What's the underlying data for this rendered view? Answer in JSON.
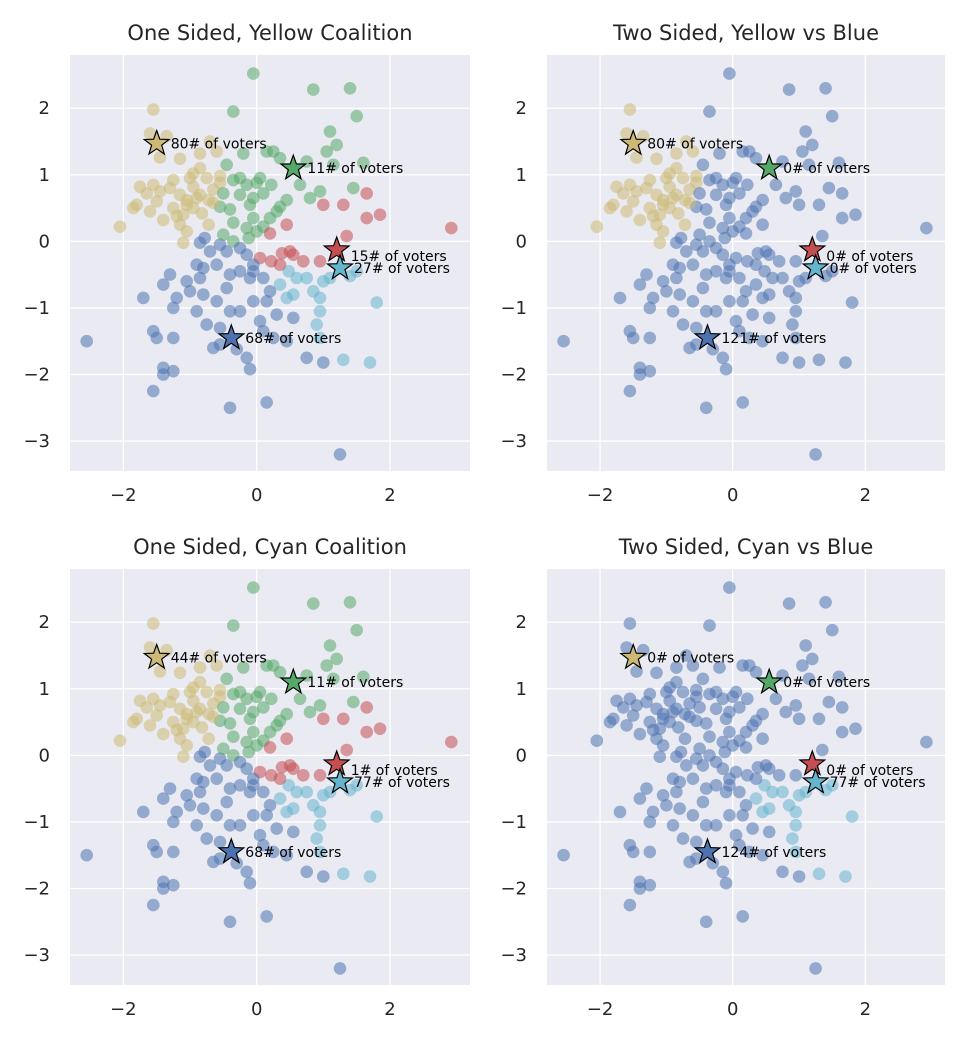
{
  "colors": {
    "background": "#eaeaf2",
    "grid": "#ffffff",
    "yellow": "#ccb974",
    "blue": "#4c72b0",
    "cyan": "#64b5cd",
    "green": "#55a868",
    "red": "#c44e52"
  },
  "chart_data": [
    {
      "type": "scatter",
      "title": "One Sided, Yellow Coalition",
      "xlabel": "",
      "ylabel": "",
      "xlim": [
        -2.8,
        3.2
      ],
      "ylim": [
        -3.45,
        2.8
      ],
      "xticks": [
        "−2",
        "0",
        "2"
      ],
      "yticks": [
        "−3",
        "−2",
        "−1",
        "0",
        "1",
        "2"
      ],
      "grid": true,
      "markers": [
        "yellow",
        "green",
        "red",
        "cyan",
        "blue"
      ],
      "labels": [
        "80# of voters",
        "11# of voters",
        "15# of voters",
        "27# of voters",
        "68# of voters"
      ]
    },
    {
      "type": "scatter",
      "title": "Two Sided, Yellow vs Blue",
      "xlabel": "",
      "ylabel": "",
      "xlim": [
        -2.8,
        3.2
      ],
      "ylim": [
        -3.45,
        2.8
      ],
      "xticks": [
        "−2",
        "0",
        "2"
      ],
      "yticks": [
        "−3",
        "−2",
        "−1",
        "0",
        "1",
        "2"
      ],
      "grid": true,
      "markers": [
        "yellow",
        "green",
        "red",
        "cyan",
        "blue"
      ],
      "labels": [
        "80# of voters",
        "0# of voters",
        "0# of voters",
        "0# of voters",
        "121# of voters"
      ]
    },
    {
      "type": "scatter",
      "title": "One Sided, Cyan Coalition",
      "xlabel": "",
      "ylabel": "",
      "xlim": [
        -2.8,
        3.2
      ],
      "ylim": [
        -3.45,
        2.8
      ],
      "xticks": [
        "−2",
        "0",
        "2"
      ],
      "yticks": [
        "−3",
        "−2",
        "−1",
        "0",
        "1",
        "2"
      ],
      "grid": true,
      "markers": [
        "yellow",
        "green",
        "red",
        "cyan",
        "blue"
      ],
      "labels": [
        "44# of voters",
        "11# of voters",
        "1# of voters",
        "77# of voters",
        "68# of voters"
      ]
    },
    {
      "type": "scatter",
      "title": "Two Sided, Cyan vs Blue",
      "xlabel": "",
      "ylabel": "",
      "xlim": [
        -2.8,
        3.2
      ],
      "ylim": [
        -3.45,
        2.8
      ],
      "xticks": [
        "−2",
        "0",
        "2"
      ],
      "yticks": [
        "−3",
        "−2",
        "−1",
        "0",
        "1",
        "2"
      ],
      "grid": true,
      "markers": [
        "yellow",
        "green",
        "red",
        "cyan",
        "blue"
      ],
      "labels": [
        "0# of voters",
        "0# of voters",
        "0# of voters",
        "77# of voters",
        "124# of voters"
      ]
    }
  ],
  "candidates": [
    {
      "name": "yellow",
      "x": -1.5,
      "y": 1.47
    },
    {
      "name": "green",
      "x": 0.55,
      "y": 1.1
    },
    {
      "name": "red",
      "x": 1.2,
      "y": -0.13
    },
    {
      "name": "cyan",
      "x": 1.25,
      "y": -0.4
    },
    {
      "name": "blue",
      "x": -0.38,
      "y": -1.45
    }
  ],
  "voters": [
    [
      -1.55,
      1.98
    ],
    [
      -1.6,
      1.62
    ],
    [
      -1.35,
      1.58
    ],
    [
      -1.45,
      1.26
    ],
    [
      -1.15,
      1.24
    ],
    [
      -0.85,
      1.32
    ],
    [
      -1.75,
      0.82
    ],
    [
      -1.45,
      0.75
    ],
    [
      -1.65,
      0.72
    ],
    [
      -1.15,
      0.7
    ],
    [
      -0.95,
      0.82
    ],
    [
      -1.05,
      0.62
    ],
    [
      -0.85,
      0.7
    ],
    [
      -0.72,
      0.62
    ],
    [
      -0.65,
      0.78
    ],
    [
      -0.55,
      0.88
    ],
    [
      -0.35,
      0.92
    ],
    [
      -0.25,
      0.7
    ],
    [
      -1.85,
      0.5
    ],
    [
      -1.6,
      0.45
    ],
    [
      -1.25,
      0.5
    ],
    [
      -1.1,
      0.4
    ],
    [
      -0.95,
      0.5
    ],
    [
      -0.82,
      0.42
    ],
    [
      -1.4,
      0.32
    ],
    [
      -1.15,
      0.25
    ],
    [
      -1.05,
      0.15
    ],
    [
      -2.05,
      0.22
    ],
    [
      -0.55,
      0.52
    ],
    [
      -0.72,
      0.25
    ],
    [
      -0.4,
      0.48
    ],
    [
      -0.55,
      0.98
    ],
    [
      -0.2,
      1.32
    ],
    [
      0.05,
      0.95
    ],
    [
      -0.35,
      1.95
    ],
    [
      -0.7,
      1.5
    ],
    [
      -0.85,
      1.1
    ],
    [
      -0.6,
      1.35
    ],
    [
      0.15,
      1.35
    ],
    [
      0.35,
      1.25
    ],
    [
      -0.45,
      1.15
    ],
    [
      -0.95,
      1.02
    ],
    [
      -1.25,
      0.92
    ],
    [
      -1.8,
      0.55
    ],
    [
      -1.5,
      0.6
    ],
    [
      -1.3,
      0.8
    ],
    [
      -1.0,
      0.95
    ],
    [
      -0.75,
      0.95
    ],
    [
      -0.65,
      0.58
    ],
    [
      -0.5,
      0.72
    ],
    [
      -1.05,
      0.55
    ],
    [
      -0.25,
      0.95
    ],
    [
      0.1,
      0.72
    ],
    [
      0.22,
      0.85
    ],
    [
      -0.15,
      0.85
    ],
    [
      -0.05,
      0.65
    ],
    [
      0.0,
      0.88
    ],
    [
      -0.9,
      0.65
    ],
    [
      -1.2,
      0.38
    ],
    [
      -1.55,
      0.85
    ],
    [
      -0.05,
      2.52
    ],
    [
      0.85,
      2.28
    ],
    [
      1.4,
      2.3
    ],
    [
      1.1,
      1.65
    ],
    [
      1.5,
      1.88
    ],
    [
      1.2,
      1.45
    ],
    [
      1.05,
      1.35
    ],
    [
      1.15,
      1.15
    ],
    [
      1.6,
      1.18
    ],
    [
      1.45,
      0.8
    ],
    [
      1.65,
      0.72
    ],
    [
      0.95,
      0.75
    ],
    [
      0.65,
      0.85
    ],
    [
      0.45,
      0.62
    ],
    [
      0.35,
      0.52
    ],
    [
      0.8,
      0.65
    ],
    [
      0.25,
      1.35
    ],
    [
      1.3,
      0.55
    ],
    [
      1.0,
      0.55
    ],
    [
      0.75,
      1.2
    ],
    [
      0.1,
      0.22
    ],
    [
      0.2,
      0.35
    ],
    [
      0.3,
      0.45
    ],
    [
      0.45,
      0.25
    ],
    [
      -0.15,
      0.2
    ],
    [
      -0.05,
      0.35
    ],
    [
      -0.1,
      0.55
    ],
    [
      0.0,
      0.15
    ],
    [
      0.5,
      -0.15
    ],
    [
      0.55,
      -0.2
    ],
    [
      0.38,
      -0.18
    ],
    [
      0.2,
      0.12
    ],
    [
      -0.12,
      0.05
    ],
    [
      1.65,
      0.35
    ],
    [
      1.85,
      0.4
    ],
    [
      2.92,
      0.2
    ],
    [
      1.35,
      0.08
    ],
    [
      0.05,
      -0.25
    ],
    [
      0.22,
      -0.3
    ],
    [
      0.48,
      -0.45
    ],
    [
      0.7,
      -0.3
    ],
    [
      0.95,
      -0.3
    ],
    [
      0.6,
      -0.55
    ],
    [
      0.75,
      -0.55
    ],
    [
      0.85,
      -0.75
    ],
    [
      0.95,
      -0.85
    ],
    [
      1.0,
      -0.6
    ],
    [
      1.1,
      -0.55
    ],
    [
      1.4,
      -0.52
    ],
    [
      1.5,
      -0.45
    ],
    [
      0.95,
      -1.05
    ],
    [
      0.9,
      -1.25
    ],
    [
      0.95,
      -1.45
    ],
    [
      1.0,
      -1.82
    ],
    [
      1.3,
      -1.78
    ],
    [
      1.7,
      -1.82
    ],
    [
      1.8,
      -0.92
    ],
    [
      1.25,
      -3.2
    ],
    [
      0.55,
      -0.8
    ],
    [
      -0.05,
      -0.45
    ],
    [
      0.1,
      -0.55
    ],
    [
      0.35,
      -0.35
    ],
    [
      0.35,
      -0.65
    ],
    [
      0.45,
      -0.85
    ],
    [
      -1.1,
      -0.02
    ],
    [
      -0.85,
      -0.02
    ],
    [
      -0.78,
      0.05
    ],
    [
      -0.7,
      -0.15
    ],
    [
      -0.9,
      -0.35
    ],
    [
      -0.8,
      -0.4
    ],
    [
      -0.55,
      -0.05
    ],
    [
      -0.45,
      -0.15
    ],
    [
      -0.35,
      0.0
    ],
    [
      -0.25,
      -0.1
    ],
    [
      -0.6,
      -0.35
    ],
    [
      -0.85,
      -0.55
    ],
    [
      -0.4,
      -0.5
    ],
    [
      -0.25,
      -0.45
    ],
    [
      -0.05,
      -0.35
    ],
    [
      -1.3,
      -0.5
    ],
    [
      -1.05,
      -0.6
    ],
    [
      -1.0,
      -0.75
    ],
    [
      -0.8,
      -0.8
    ],
    [
      -1.2,
      -0.85
    ],
    [
      -1.7,
      -0.85
    ],
    [
      -1.25,
      -1.0
    ],
    [
      -0.9,
      -1.05
    ],
    [
      -0.6,
      -0.9
    ],
    [
      -0.45,
      -0.7
    ],
    [
      -0.4,
      -1.05
    ],
    [
      -0.25,
      -1.05
    ],
    [
      -0.05,
      -0.9
    ],
    [
      0.15,
      -0.9
    ],
    [
      0.2,
      -0.75
    ],
    [
      -0.1,
      -0.55
    ],
    [
      -1.25,
      -1.45
    ],
    [
      -1.55,
      -1.35
    ],
    [
      -1.5,
      -1.45
    ],
    [
      -1.4,
      -1.9
    ],
    [
      -1.4,
      -2.0
    ],
    [
      -1.25,
      -1.95
    ],
    [
      -1.55,
      -2.25
    ],
    [
      -0.65,
      -1.6
    ],
    [
      -0.55,
      -1.55
    ],
    [
      -0.3,
      -1.62
    ],
    [
      -0.15,
      -1.75
    ],
    [
      -0.1,
      -1.92
    ],
    [
      0.1,
      -1.35
    ],
    [
      0.25,
      -1.45
    ],
    [
      0.45,
      -1.5
    ],
    [
      0.75,
      -1.75
    ],
    [
      0.15,
      -2.42
    ],
    [
      -0.4,
      -2.5
    ],
    [
      -2.55,
      -1.5
    ],
    [
      -1.4,
      -0.65
    ],
    [
      -0.75,
      -1.25
    ],
    [
      -0.55,
      -1.3
    ],
    [
      0.05,
      -1.2
    ],
    [
      0.3,
      -1.1
    ],
    [
      0.55,
      -1.15
    ],
    [
      -0.5,
      0.1
    ],
    [
      -0.35,
      0.28
    ],
    [
      -0.15,
      -0.2
    ]
  ]
}
